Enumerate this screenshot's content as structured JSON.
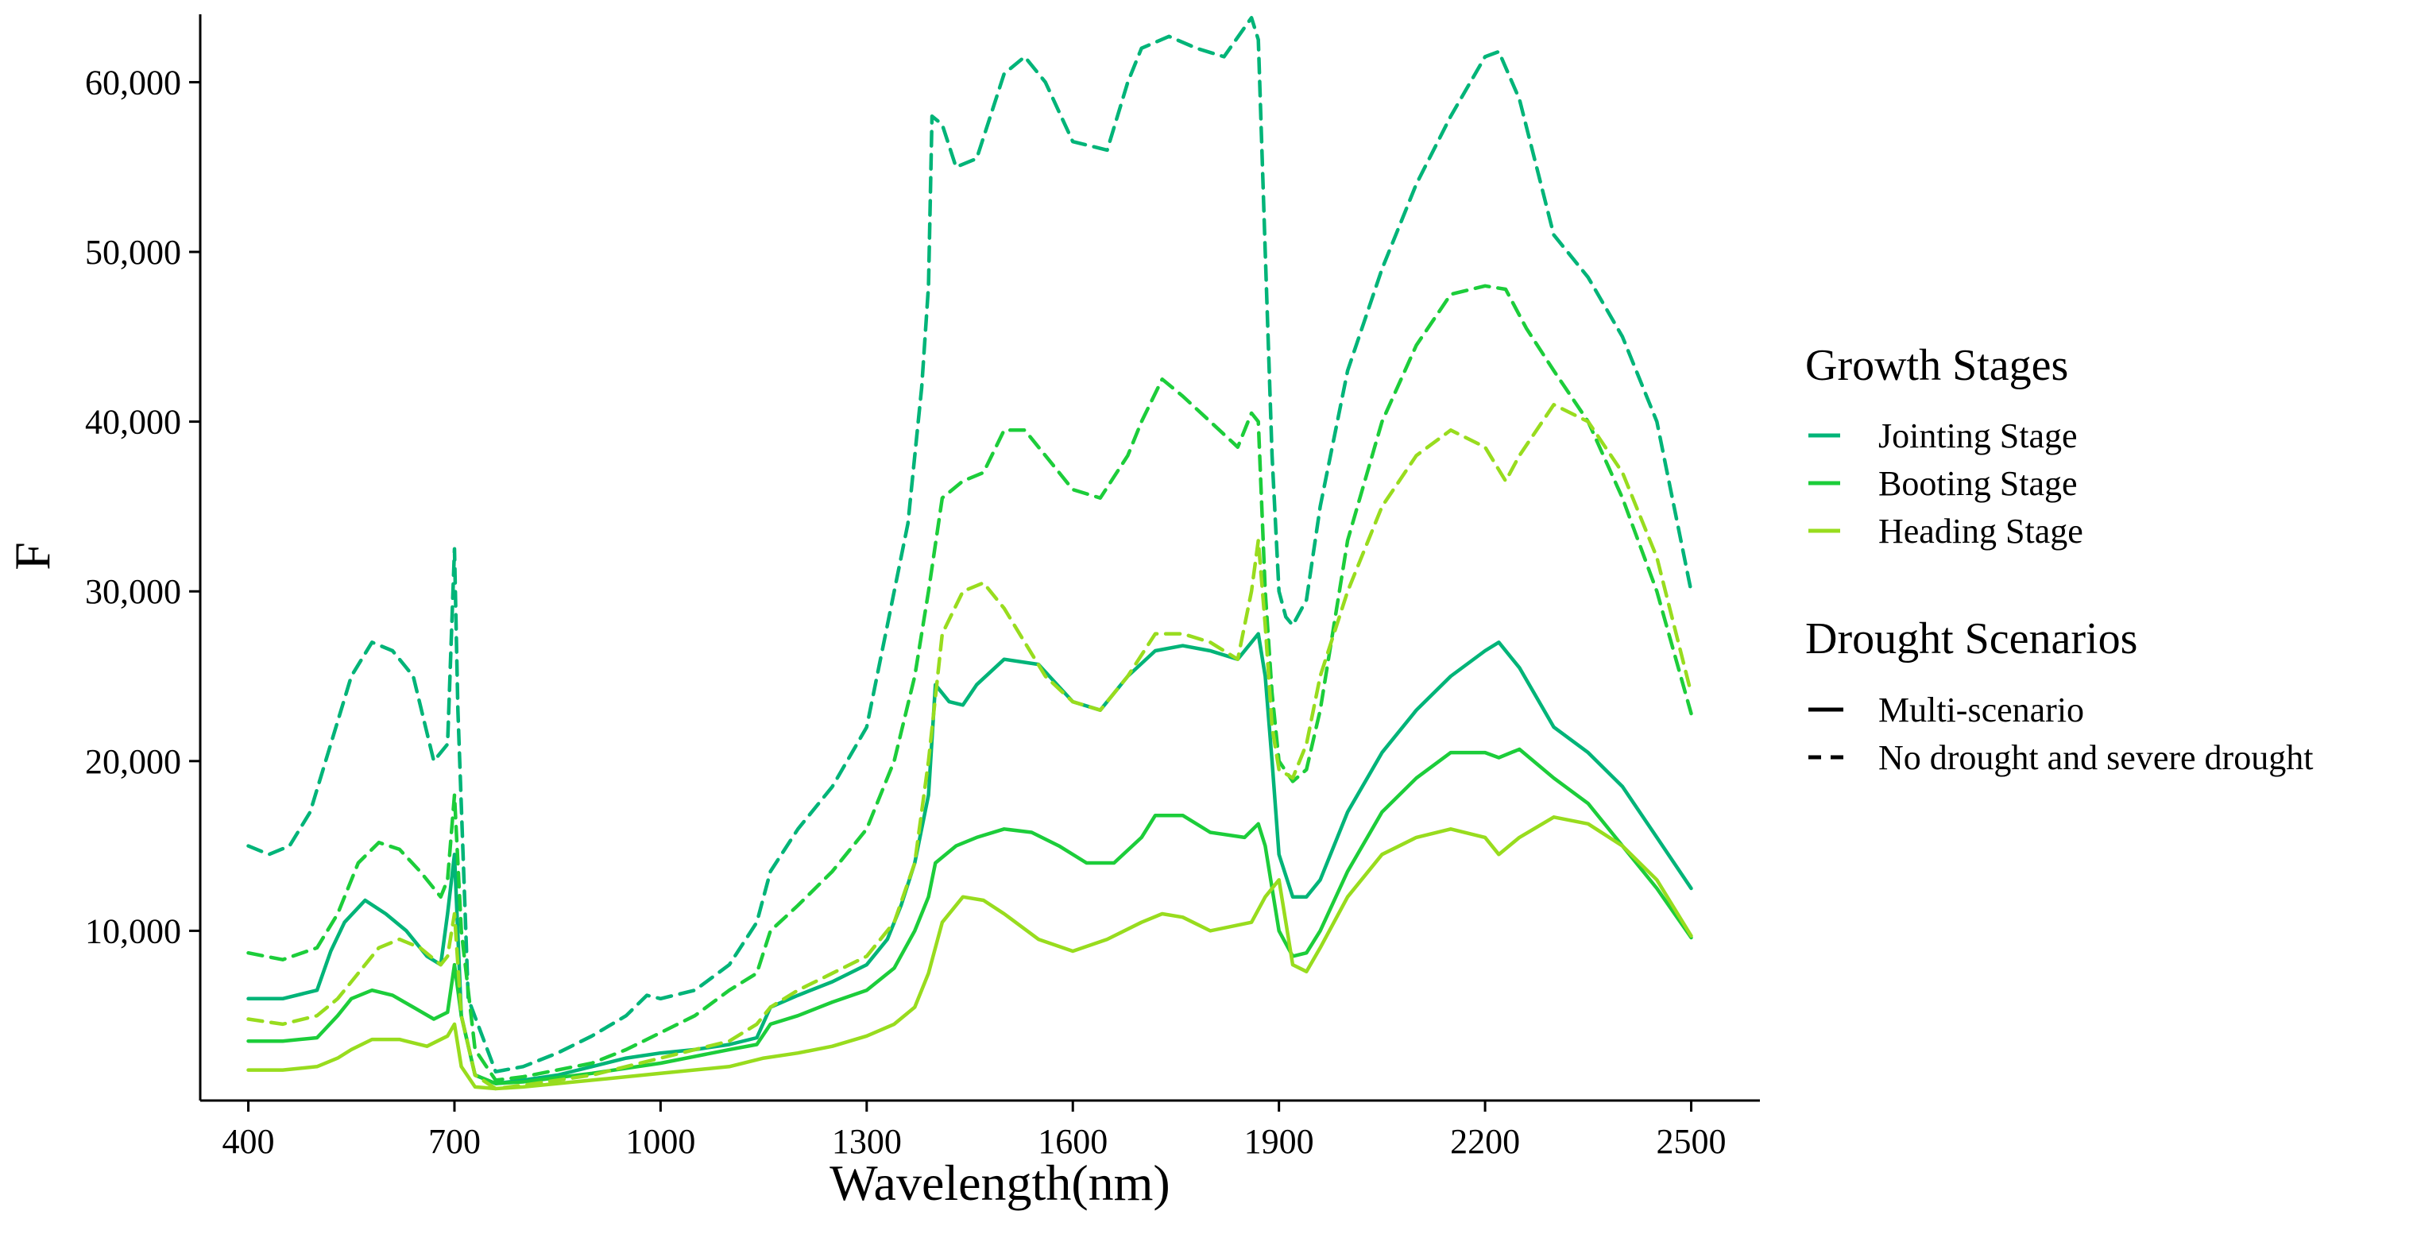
{
  "chart_data": {
    "type": "line",
    "title": "",
    "xlabel": "Wavelength(nm)",
    "ylabel": "F",
    "xlim": [
      330,
      2600
    ],
    "ylim": [
      0,
      64000
    ],
    "xticks": [
      400,
      700,
      1000,
      1300,
      1600,
      1900,
      2200,
      2500
    ],
    "xtick_labels": [
      "400",
      "700",
      "1000",
      "1300",
      "1600",
      "1900",
      "2200",
      "2500"
    ],
    "yticks": [
      10000,
      20000,
      30000,
      40000,
      50000,
      60000
    ],
    "ytick_labels": [
      "10,000",
      "20,000",
      "30,000",
      "40,000",
      "50,000",
      "60,000"
    ],
    "grid": false,
    "legend_position": "right",
    "legend": {
      "color_title": "Growth Stages",
      "color_entries": [
        {
          "label": "Jointing Stage",
          "color": "#00b478"
        },
        {
          "label": "Booting Stage",
          "color": "#1ccd3a"
        },
        {
          "label": "Heading Stage",
          "color": "#98dc1e"
        }
      ],
      "linetype_title": "Drought Scenarios",
      "linetype_entries": [
        {
          "label": "Multi-scenario",
          "dash": "solid"
        },
        {
          "label": "No drought and severe drought",
          "dash": "dashed"
        }
      ]
    },
    "series": [
      {
        "name": "Jointing Stage - Multi-scenario",
        "stage": "Jointing Stage",
        "scenario": "Multi-scenario",
        "color": "#00b478",
        "dash": "solid",
        "x": [
          400,
          450,
          500,
          520,
          540,
          570,
          600,
          630,
          660,
          680,
          690,
          700,
          710,
          730,
          760,
          800,
          850,
          900,
          950,
          1000,
          1050,
          1100,
          1140,
          1160,
          1200,
          1250,
          1300,
          1330,
          1350,
          1370,
          1390,
          1400,
          1420,
          1440,
          1460,
          1500,
          1550,
          1600,
          1640,
          1680,
          1720,
          1760,
          1800,
          1840,
          1860,
          1870,
          1880,
          1890,
          1900,
          1920,
          1940,
          1960,
          2000,
          2050,
          2100,
          2150,
          2200,
          2220,
          2250,
          2300,
          2350,
          2400,
          2450,
          2500
        ],
        "y": [
          6000,
          6000,
          6500,
          8800,
          10500,
          11800,
          11000,
          10000,
          8500,
          8000,
          11000,
          14500,
          5000,
          1500,
          1000,
          1200,
          1500,
          2000,
          2500,
          2800,
          3000,
          3300,
          3700,
          5500,
          6200,
          7000,
          8000,
          9500,
          11500,
          14000,
          18000,
          24500,
          23500,
          23300,
          24500,
          26000,
          25700,
          23500,
          23000,
          25000,
          26500,
          26800,
          26500,
          26000,
          27000,
          27500,
          25000,
          20000,
          14500,
          12000,
          12000,
          13000,
          17000,
          20500,
          23000,
          25000,
          26500,
          27000,
          25500,
          22000,
          20500,
          18500,
          15500,
          12500
        ]
      },
      {
        "name": "Booting Stage - Multi-scenario",
        "stage": "Booting Stage",
        "scenario": "Multi-scenario",
        "color": "#1ccd3a",
        "dash": "solid",
        "x": [
          400,
          450,
          500,
          530,
          550,
          580,
          610,
          640,
          670,
          690,
          700,
          710,
          730,
          760,
          800,
          900,
          1000,
          1100,
          1140,
          1160,
          1200,
          1250,
          1300,
          1340,
          1370,
          1390,
          1400,
          1430,
          1460,
          1500,
          1540,
          1580,
          1620,
          1660,
          1700,
          1720,
          1760,
          1800,
          1850,
          1870,
          1880,
          1900,
          1920,
          1940,
          1960,
          2000,
          2050,
          2100,
          2150,
          2200,
          2220,
          2250,
          2300,
          2350,
          2400,
          2450,
          2500
        ],
        "y": [
          3500,
          3500,
          3700,
          5000,
          6000,
          6500,
          6200,
          5500,
          4800,
          5200,
          8000,
          5000,
          1500,
          1000,
          1100,
          1600,
          2200,
          3000,
          3300,
          4500,
          5000,
          5800,
          6500,
          7800,
          10000,
          12000,
          14000,
          15000,
          15500,
          16000,
          15800,
          15000,
          14000,
          14000,
          15500,
          16800,
          16800,
          15800,
          15500,
          16300,
          15000,
          10000,
          8500,
          8700,
          10000,
          13500,
          17000,
          19000,
          20500,
          20500,
          20200,
          20700,
          19000,
          17500,
          15000,
          12500,
          9600
        ]
      },
      {
        "name": "Heading Stage - Multi-scenario",
        "stage": "Heading Stage",
        "scenario": "Multi-scenario",
        "color": "#98dc1e",
        "dash": "solid",
        "x": [
          400,
          450,
          500,
          530,
          550,
          580,
          620,
          660,
          690,
          700,
          710,
          730,
          760,
          800,
          900,
          1000,
          1100,
          1150,
          1200,
          1250,
          1300,
          1340,
          1370,
          1390,
          1410,
          1440,
          1470,
          1500,
          1550,
          1600,
          1650,
          1700,
          1730,
          1760,
          1800,
          1860,
          1880,
          1900,
          1920,
          1940,
          1960,
          2000,
          2050,
          2100,
          2150,
          2200,
          2220,
          2250,
          2300,
          2350,
          2400,
          2450,
          2500
        ],
        "y": [
          1800,
          1800,
          2000,
          2500,
          3000,
          3600,
          3600,
          3200,
          3800,
          4500,
          2000,
          800,
          700,
          800,
          1200,
          1600,
          2000,
          2500,
          2800,
          3200,
          3800,
          4500,
          5500,
          7500,
          10500,
          12000,
          11800,
          11000,
          9500,
          8800,
          9500,
          10500,
          11000,
          10800,
          10000,
          10500,
          12000,
          13000,
          8000,
          7600,
          9000,
          12000,
          14500,
          15500,
          16000,
          15500,
          14500,
          15500,
          16700,
          16300,
          15000,
          13000,
          9700
        ]
      },
      {
        "name": "Jointing Stage - No drought and severe drought",
        "stage": "Jointing Stage",
        "scenario": "No drought and severe drought",
        "color": "#00b478",
        "dash": "dashed",
        "x": [
          400,
          430,
          460,
          490,
          520,
          550,
          580,
          610,
          640,
          670,
          690,
          700,
          705,
          720,
          760,
          800,
          850,
          900,
          950,
          980,
          1000,
          1050,
          1100,
          1140,
          1160,
          1200,
          1250,
          1300,
          1330,
          1360,
          1380,
          1390,
          1395,
          1410,
          1430,
          1460,
          1500,
          1530,
          1560,
          1600,
          1650,
          1680,
          1700,
          1740,
          1780,
          1820,
          1860,
          1870,
          1880,
          1890,
          1900,
          1910,
          1920,
          1940,
          1960,
          2000,
          2050,
          2100,
          2150,
          2200,
          2220,
          2250,
          2300,
          2350,
          2400,
          2450,
          2500
        ],
        "y": [
          15000,
          14500,
          15000,
          17000,
          21000,
          25000,
          27000,
          26500,
          25000,
          20000,
          21000,
          32500,
          23000,
          6000,
          1700,
          2000,
          2800,
          3800,
          5000,
          6200,
          6000,
          6500,
          8000,
          10500,
          13500,
          16000,
          18500,
          22000,
          28000,
          34000,
          42000,
          48000,
          58000,
          57500,
          55000,
          55500,
          60500,
          61500,
          60000,
          56500,
          56000,
          60000,
          62000,
          62700,
          62000,
          61500,
          63800,
          62500,
          50000,
          38000,
          30000,
          28500,
          28000,
          29500,
          35000,
          43000,
          49000,
          54000,
          58000,
          61500,
          61800,
          59000,
          51000,
          48500,
          45000,
          40000,
          30000
        ]
      },
      {
        "name": "Booting Stage - No drought and severe drought",
        "stage": "Booting Stage",
        "scenario": "No drought and severe drought",
        "color": "#1ccd3a",
        "dash": "dashed",
        "x": [
          400,
          450,
          500,
          530,
          560,
          590,
          620,
          650,
          680,
          690,
          700,
          710,
          730,
          760,
          800,
          900,
          950,
          1000,
          1050,
          1100,
          1140,
          1160,
          1200,
          1250,
          1300,
          1340,
          1370,
          1390,
          1410,
          1440,
          1470,
          1500,
          1530,
          1560,
          1600,
          1640,
          1680,
          1700,
          1730,
          1760,
          1800,
          1840,
          1860,
          1870,
          1880,
          1890,
          1900,
          1920,
          1940,
          1960,
          2000,
          2050,
          2100,
          2150,
          2200,
          2230,
          2260,
          2300,
          2350,
          2400,
          2450,
          2500
        ],
        "y": [
          8700,
          8300,
          9000,
          11000,
          14000,
          15200,
          14800,
          13500,
          12000,
          13000,
          18000,
          10000,
          3000,
          1200,
          1400,
          2200,
          3000,
          4000,
          5000,
          6500,
          7500,
          10000,
          11500,
          13500,
          16000,
          20000,
          25000,
          30000,
          35500,
          36500,
          37000,
          39500,
          39500,
          38000,
          36000,
          35500,
          38000,
          40000,
          42500,
          41500,
          40000,
          38500,
          40500,
          40000,
          30000,
          24000,
          20000,
          18800,
          19500,
          23000,
          33000,
          40000,
          44500,
          47500,
          48000,
          47800,
          45500,
          43000,
          40000,
          35500,
          30000,
          22800
        ]
      },
      {
        "name": "Heading Stage - No drought and severe drought",
        "stage": "Heading Stage",
        "scenario": "No drought and severe drought",
        "color": "#98dc1e",
        "dash": "dashed",
        "x": [
          400,
          450,
          500,
          530,
          560,
          590,
          620,
          650,
          680,
          690,
          700,
          710,
          730,
          760,
          800,
          900,
          1000,
          1100,
          1140,
          1160,
          1200,
          1250,
          1300,
          1340,
          1370,
          1390,
          1410,
          1440,
          1470,
          1500,
          1530,
          1560,
          1600,
          1640,
          1680,
          1720,
          1760,
          1800,
          1840,
          1860,
          1870,
          1880,
          1890,
          1900,
          1920,
          1940,
          1960,
          2000,
          2050,
          2100,
          2150,
          2200,
          2230,
          2250,
          2300,
          2350,
          2400,
          2450,
          2500
        ],
        "y": [
          4800,
          4500,
          5000,
          6000,
          7500,
          9000,
          9500,
          9000,
          8000,
          8500,
          11000,
          5000,
          1500,
          700,
          900,
          1500,
          2500,
          3500,
          4500,
          5500,
          6500,
          7500,
          8500,
          10500,
          14000,
          20000,
          27500,
          30000,
          30500,
          29000,
          27000,
          25000,
          23500,
          23000,
          25000,
          27500,
          27500,
          27000,
          26000,
          30000,
          33000,
          28000,
          22000,
          19500,
          19000,
          21000,
          25000,
          30000,
          35000,
          38000,
          39500,
          38500,
          36500,
          38000,
          41000,
          40000,
          37000,
          32000,
          24000
        ]
      }
    ]
  }
}
